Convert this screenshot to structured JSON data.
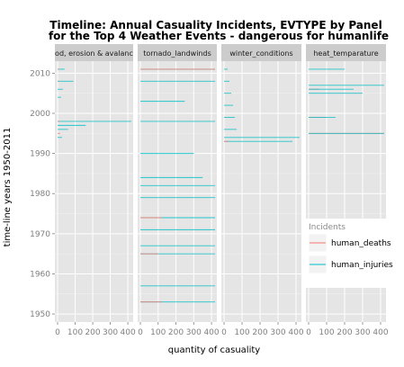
{
  "chart_data": {
    "type": "bar",
    "orientation": "horizontal",
    "title_line1": "Timeline: Annual Casuality Incidents, EVTYPE by Panel",
    "title_line2": "for the Top 4 Weather Events - dangerous for humanlife",
    "xlabel": "quantity of casuality",
    "ylabel": "time-line years 1950-2011",
    "xlim": [
      0,
      420
    ],
    "ylim": [
      1948,
      2013
    ],
    "xticks": [
      0,
      100,
      200,
      300,
      400
    ],
    "yticks": [
      1950,
      1960,
      1970,
      1980,
      1990,
      2000,
      2010
    ],
    "legend": {
      "title": "Incidents",
      "placement": "right",
      "entries": [
        {
          "name": "human_deaths",
          "color": "#F8766D"
        },
        {
          "name": "human_injuries",
          "color": "#00BFC4"
        }
      ]
    },
    "panels": [
      {
        "label": "flood, erosion & avalanche",
        "segments": [
          {
            "series": "human_injuries",
            "year": 2011,
            "value": 40
          },
          {
            "series": "human_deaths",
            "year": 2011,
            "value": 8
          },
          {
            "series": "human_injuries",
            "year": 2008,
            "value": 90
          },
          {
            "series": "human_deaths",
            "year": 2008,
            "value": 6
          },
          {
            "series": "human_injuries",
            "year": 2006,
            "value": 30
          },
          {
            "series": "human_injuries",
            "year": 2004,
            "value": 20
          },
          {
            "series": "human_injuries",
            "year": 1998,
            "value": 420
          },
          {
            "series": "human_deaths",
            "year": 1998,
            "value": 10
          },
          {
            "series": "human_injuries",
            "year": 1997,
            "value": 160
          },
          {
            "series": "human_injuries",
            "year": 1996,
            "value": 60
          },
          {
            "series": "human_deaths",
            "year": 1995,
            "value": 15
          },
          {
            "series": "human_injuries",
            "year": 1994,
            "value": 25
          }
        ]
      },
      {
        "label": "tornado_landwinds",
        "segments": [
          {
            "series": "human_injuries",
            "year": 2011,
            "value": 420
          },
          {
            "series": "human_deaths",
            "year": 2011,
            "value": 420
          },
          {
            "series": "human_injuries",
            "year": 2008,
            "value": 420
          },
          {
            "series": "human_injuries",
            "year": 2003,
            "value": 250
          },
          {
            "series": "human_injuries",
            "year": 1998,
            "value": 420
          },
          {
            "series": "human_injuries",
            "year": 1990,
            "value": 300
          },
          {
            "series": "human_injuries",
            "year": 1984,
            "value": 350
          },
          {
            "series": "human_injuries",
            "year": 1982,
            "value": 420
          },
          {
            "series": "human_injuries",
            "year": 1979,
            "value": 420
          },
          {
            "series": "human_injuries",
            "year": 1974,
            "value": 420
          },
          {
            "series": "human_deaths",
            "year": 1974,
            "value": 120
          },
          {
            "series": "human_injuries",
            "year": 1971,
            "value": 420
          },
          {
            "series": "human_injuries",
            "year": 1967,
            "value": 420
          },
          {
            "series": "human_injuries",
            "year": 1965,
            "value": 420
          },
          {
            "series": "human_deaths",
            "year": 1965,
            "value": 100
          },
          {
            "series": "human_injuries",
            "year": 1957,
            "value": 420
          },
          {
            "series": "human_injuries",
            "year": 1953,
            "value": 420
          },
          {
            "series": "human_deaths",
            "year": 1953,
            "value": 120
          }
        ]
      },
      {
        "label": "winter_conditions",
        "segments": [
          {
            "series": "human_injuries",
            "year": 2011,
            "value": 20
          },
          {
            "series": "human_injuries",
            "year": 2008,
            "value": 30
          },
          {
            "series": "human_injuries",
            "year": 2005,
            "value": 40
          },
          {
            "series": "human_injuries",
            "year": 2002,
            "value": 50
          },
          {
            "series": "human_injuries",
            "year": 1999,
            "value": 60
          },
          {
            "series": "human_injuries",
            "year": 1996,
            "value": 70
          },
          {
            "series": "human_injuries",
            "year": 1994,
            "value": 420
          },
          {
            "series": "human_injuries",
            "year": 1993,
            "value": 380
          },
          {
            "series": "human_deaths",
            "year": 1993,
            "value": 25
          }
        ]
      },
      {
        "label": "heat_temparature",
        "segments": [
          {
            "series": "human_injuries",
            "year": 2011,
            "value": 200
          },
          {
            "series": "human_injuries",
            "year": 2007,
            "value": 420
          },
          {
            "series": "human_deaths",
            "year": 2006,
            "value": 60
          },
          {
            "series": "human_injuries",
            "year": 2006,
            "value": 250
          },
          {
            "series": "human_injuries",
            "year": 2005,
            "value": 300
          },
          {
            "series": "human_deaths",
            "year": 1999,
            "value": 100
          },
          {
            "series": "human_injuries",
            "year": 1999,
            "value": 150
          },
          {
            "series": "human_deaths",
            "year": 1995,
            "value": 420
          },
          {
            "series": "human_injuries",
            "year": 1995,
            "value": 420
          }
        ]
      }
    ]
  }
}
